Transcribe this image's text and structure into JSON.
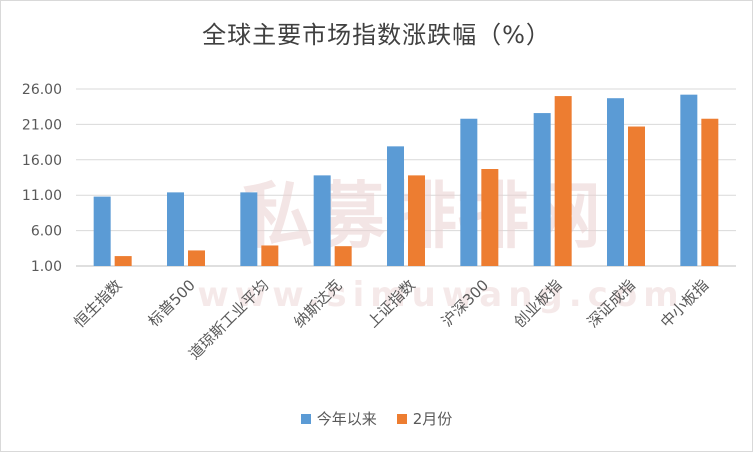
{
  "chart_data": {
    "type": "bar",
    "title": "全球主要市场指数涨跌幅（%）",
    "categories": [
      "恒生指数",
      "标普500",
      "道琼斯工业平均",
      "纳斯达克",
      "上证指数",
      "沪深300",
      "创业板指",
      "深证成指",
      "中小板指"
    ],
    "series": [
      {
        "name": "今年以来",
        "color": "#5b9bd5",
        "values": [
          10.8,
          11.4,
          11.4,
          13.8,
          17.9,
          21.8,
          22.6,
          24.7,
          25.2
        ]
      },
      {
        "name": "2月份",
        "color": "#ed7d31",
        "values": [
          2.4,
          3.2,
          3.9,
          3.8,
          13.8,
          14.7,
          25.0,
          20.7,
          21.8
        ]
      }
    ],
    "ylim": [
      1.0,
      26.0
    ],
    "yticks": [
      "1.00",
      "6.00",
      "11.00",
      "16.00",
      "21.00",
      "26.00"
    ],
    "grid": true,
    "legend_position": "bottom"
  },
  "watermark": {
    "text": "私募排排网",
    "url": "www.simuwang.com"
  }
}
